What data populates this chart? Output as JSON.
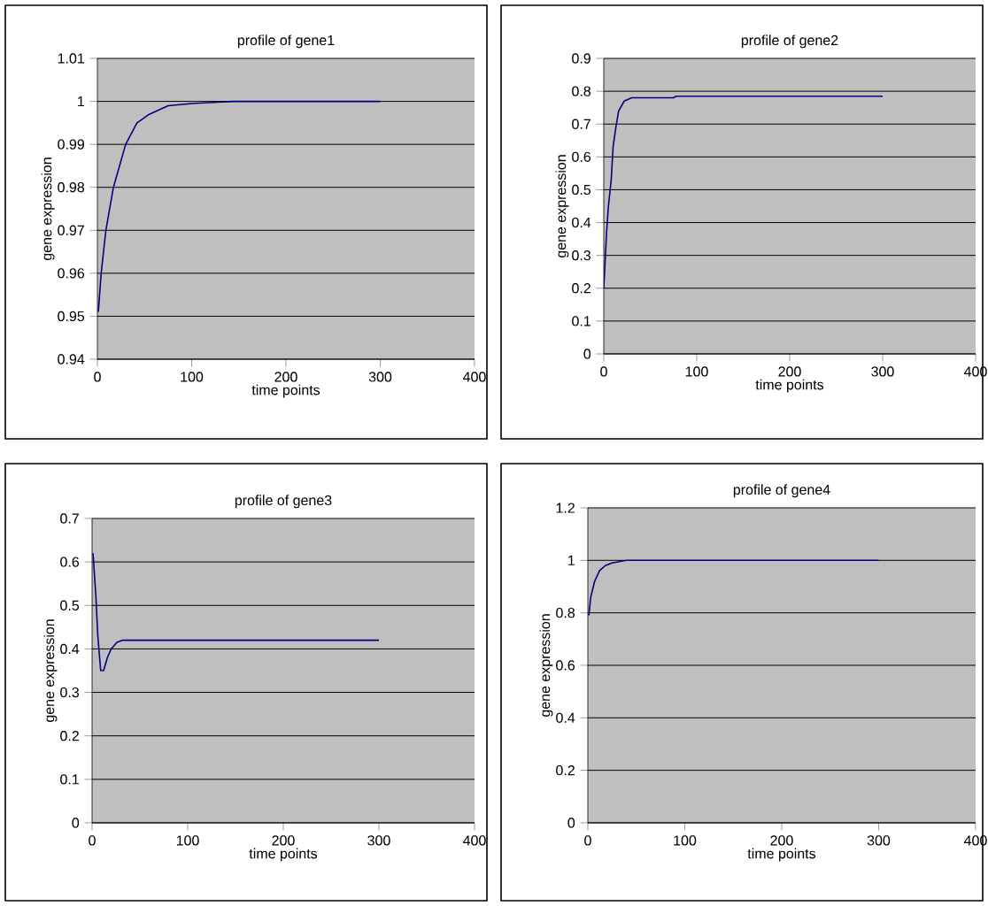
{
  "chart_data": [
    {
      "type": "line",
      "title": "profile of gene1",
      "xlabel": "time points",
      "ylabel": "gene expression",
      "xlim": [
        0,
        400
      ],
      "xticks": [
        0,
        100,
        200,
        300,
        400
      ],
      "ylim": [
        0.94,
        1.01
      ],
      "yticks": [
        0.94,
        0.95,
        0.96,
        0.97,
        0.98,
        0.99,
        1,
        1.01
      ],
      "grid": "y",
      "series": [
        {
          "color": "#000080",
          "x": [
            1,
            4,
            9,
            17,
            30,
            42,
            55,
            75,
            100,
            145,
            300
          ],
          "values": [
            0.951,
            0.96,
            0.97,
            0.98,
            0.99,
            0.995,
            0.997,
            0.999,
            0.9995,
            1.0,
            1.0
          ]
        }
      ]
    },
    {
      "type": "line",
      "title": "profile of gene2",
      "xlabel": "time points",
      "ylabel": "gene expression",
      "xlim": [
        0,
        400
      ],
      "xticks": [
        0,
        100,
        200,
        300,
        400
      ],
      "ylim": [
        0,
        0.9
      ],
      "yticks": [
        0,
        0.1,
        0.2,
        0.3,
        0.4,
        0.5,
        0.6,
        0.7,
        0.8,
        0.9
      ],
      "grid": "y",
      "series": [
        {
          "color": "#000080",
          "x": [
            0,
            3,
            5,
            8,
            10,
            13,
            16,
            22,
            30,
            75,
            78,
            300
          ],
          "values": [
            0.2,
            0.37,
            0.45,
            0.53,
            0.63,
            0.69,
            0.74,
            0.77,
            0.78,
            0.78,
            0.785,
            0.785
          ]
        }
      ]
    },
    {
      "type": "line",
      "title": "profile of gene3",
      "xlabel": "time points",
      "ylabel": "gene expression",
      "xlim": [
        0,
        400
      ],
      "xticks": [
        0,
        100,
        200,
        300,
        400
      ],
      "ylim": [
        0,
        0.7
      ],
      "yticks": [
        0,
        0.1,
        0.2,
        0.3,
        0.4,
        0.5,
        0.6,
        0.7
      ],
      "grid": "y",
      "series": [
        {
          "color": "#000080",
          "x": [
            1,
            4,
            6,
            9,
            12,
            16,
            20,
            26,
            32,
            300
          ],
          "values": [
            0.62,
            0.52,
            0.43,
            0.35,
            0.35,
            0.38,
            0.4,
            0.415,
            0.42,
            0.42
          ]
        }
      ]
    },
    {
      "type": "line",
      "title": "profile of gene4",
      "xlabel": "time points",
      "ylabel": "gene expression",
      "xlim": [
        0,
        400
      ],
      "xticks": [
        0,
        100,
        200,
        300,
        400
      ],
      "ylim": [
        0,
        1.2
      ],
      "yticks": [
        0,
        0.2,
        0.4,
        0.6,
        0.8,
        1,
        1.2
      ],
      "grid": "y",
      "series": [
        {
          "color": "#000080",
          "x": [
            1,
            3,
            7,
            12,
            18,
            25,
            40,
            300
          ],
          "values": [
            0.79,
            0.86,
            0.92,
            0.96,
            0.98,
            0.99,
            1.0,
            1.0
          ]
        }
      ]
    }
  ]
}
